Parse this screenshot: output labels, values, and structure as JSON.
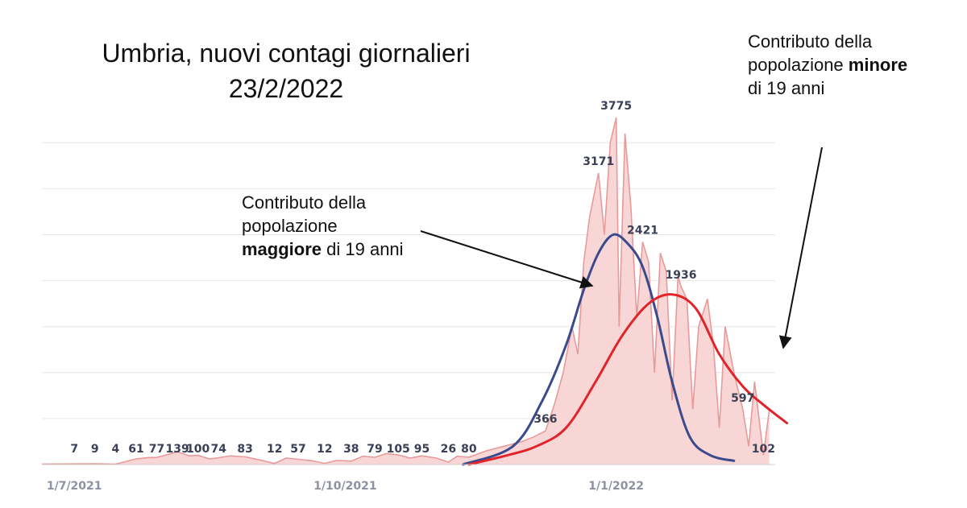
{
  "title_lines": [
    "Umbria, nuovi contagi giornalieri",
    "23/2/2022"
  ],
  "annotations": {
    "adult": {
      "line1": "Contributo della",
      "line2": "popolazione",
      "bold": "maggiore",
      "rest": " di 19 anni"
    },
    "minor": {
      "line1": "Contributo della",
      "line2_plain": "popolazione ",
      "bold": "minore",
      "line3": "di 19 anni"
    }
  },
  "colors": {
    "area_fill": "#f9d6d6",
    "area_line": "#e79a9a",
    "adult_curve": "#3a4a8c",
    "minor_curve": "#e0242a",
    "gridline": "#e6e6e6",
    "arrow": "#111111"
  },
  "chart_data": {
    "type": "area",
    "x_tick_labels": [
      "1/7/2021",
      "1/10/2021",
      "1/1/2022"
    ],
    "grid": true,
    "daily_new_cases_labels": [
      {
        "date": "2021-07-01",
        "value": 7
      },
      {
        "date": "2021-07-08",
        "value": 9
      },
      {
        "date": "2021-07-15",
        "value": 4
      },
      {
        "date": "2021-07-22",
        "value": 61
      },
      {
        "date": "2021-07-29",
        "value": 77
      },
      {
        "date": "2021-08-05",
        "value": 139
      },
      {
        "date": "2021-08-12",
        "value": 100
      },
      {
        "date": "2021-08-19",
        "value": 74
      },
      {
        "date": "2021-08-28",
        "value": 83
      },
      {
        "date": "2021-09-07",
        "value": 12
      },
      {
        "date": "2021-09-15",
        "value": 57
      },
      {
        "date": "2021-09-24",
        "value": 12
      },
      {
        "date": "2021-10-03",
        "value": 38
      },
      {
        "date": "2021-10-11",
        "value": 79
      },
      {
        "date": "2021-10-19",
        "value": 105
      },
      {
        "date": "2021-10-27",
        "value": 95
      },
      {
        "date": "2021-11-05",
        "value": 26
      },
      {
        "date": "2021-11-12",
        "value": 80
      },
      {
        "date": "2021-12-08",
        "value": 366
      },
      {
        "date": "2021-12-26",
        "value": 3171
      },
      {
        "date": "2022-01-01",
        "value": 3775
      },
      {
        "date": "2022-01-10",
        "value": 2421
      },
      {
        "date": "2022-01-23",
        "value": 1936
      },
      {
        "date": "2022-02-13",
        "value": 597
      },
      {
        "date": "2022-02-20",
        "value": 102
      }
    ],
    "series": [
      {
        "values": [
          [
            "2021-11-10",
            0
          ],
          [
            "2021-11-27",
            200
          ],
          [
            "2021-12-07",
            700
          ],
          [
            "2021-12-15",
            1300
          ],
          [
            "2021-12-21",
            1900
          ],
          [
            "2021-12-26",
            2300
          ],
          [
            "2021-12-31",
            2500
          ],
          [
            "2022-01-05",
            2400
          ],
          [
            "2022-01-10",
            2150
          ],
          [
            "2022-01-15",
            1600
          ],
          [
            "2022-01-20",
            900
          ],
          [
            "2022-01-26",
            300
          ],
          [
            "2022-02-02",
            100
          ],
          [
            "2022-02-10",
            40
          ]
        ]
      },
      {
        "values": [
          [
            "2021-11-12",
            0
          ],
          [
            "2021-11-25",
            100
          ],
          [
            "2021-12-05",
            200
          ],
          [
            "2021-12-15",
            400
          ],
          [
            "2021-12-25",
            900
          ],
          [
            "2022-01-03",
            1400
          ],
          [
            "2022-01-12",
            1750
          ],
          [
            "2022-01-20",
            1850
          ],
          [
            "2022-01-28",
            1700
          ],
          [
            "2022-02-05",
            1200
          ],
          [
            "2022-02-13",
            850
          ],
          [
            "2022-02-20",
            650
          ],
          [
            "2022-02-28",
            450
          ]
        ]
      }
    ],
    "daily_series": [
      [
        "2021-06-20",
        5
      ],
      [
        "2021-07-01",
        7
      ],
      [
        "2021-07-08",
        9
      ],
      [
        "2021-07-15",
        4
      ],
      [
        "2021-07-22",
        61
      ],
      [
        "2021-07-26",
        75
      ],
      [
        "2021-07-29",
        77
      ],
      [
        "2021-08-02",
        110
      ],
      [
        "2021-08-05",
        139
      ],
      [
        "2021-08-09",
        95
      ],
      [
        "2021-08-12",
        100
      ],
      [
        "2021-08-16",
        60
      ],
      [
        "2021-08-19",
        74
      ],
      [
        "2021-08-23",
        95
      ],
      [
        "2021-08-28",
        83
      ],
      [
        "2021-09-02",
        50
      ],
      [
        "2021-09-07",
        12
      ],
      [
        "2021-09-11",
        70
      ],
      [
        "2021-09-15",
        57
      ],
      [
        "2021-09-20",
        40
      ],
      [
        "2021-09-24",
        12
      ],
      [
        "2021-09-28",
        45
      ],
      [
        "2021-10-03",
        38
      ],
      [
        "2021-10-07",
        90
      ],
      [
        "2021-10-11",
        79
      ],
      [
        "2021-10-15",
        120
      ],
      [
        "2021-10-19",
        105
      ],
      [
        "2021-10-23",
        70
      ],
      [
        "2021-10-27",
        95
      ],
      [
        "2021-11-01",
        70
      ],
      [
        "2021-11-05",
        26
      ],
      [
        "2021-11-08",
        90
      ],
      [
        "2021-11-12",
        80
      ],
      [
        "2021-11-18",
        150
      ],
      [
        "2021-11-24",
        200
      ],
      [
        "2021-11-30",
        250
      ],
      [
        "2021-12-04",
        300
      ],
      [
        "2021-12-08",
        366
      ],
      [
        "2021-12-11",
        650
      ],
      [
        "2021-12-14",
        1000
      ],
      [
        "2021-12-17",
        1500
      ],
      [
        "2021-12-19",
        1200
      ],
      [
        "2021-12-21",
        2200
      ],
      [
        "2021-12-23",
        2700
      ],
      [
        "2021-12-26",
        3171
      ],
      [
        "2021-12-28",
        2500
      ],
      [
        "2021-12-30",
        3500
      ],
      [
        "2022-01-01",
        3775
      ],
      [
        "2022-01-02",
        1500
      ],
      [
        "2022-01-04",
        3600
      ],
      [
        "2022-01-06",
        2800
      ],
      [
        "2022-01-08",
        1600
      ],
      [
        "2022-01-10",
        2421
      ],
      [
        "2022-01-12",
        2200
      ],
      [
        "2022-01-14",
        1000
      ],
      [
        "2022-01-16",
        2300
      ],
      [
        "2022-01-18",
        2100
      ],
      [
        "2022-01-20",
        700
      ],
      [
        "2022-01-22",
        2050
      ],
      [
        "2022-01-23",
        1936
      ],
      [
        "2022-01-25",
        1800
      ],
      [
        "2022-01-27",
        600
      ],
      [
        "2022-01-29",
        1500
      ],
      [
        "2022-02-01",
        1800
      ],
      [
        "2022-02-03",
        1300
      ],
      [
        "2022-02-05",
        400
      ],
      [
        "2022-02-07",
        1500
      ],
      [
        "2022-02-10",
        1000
      ],
      [
        "2022-02-13",
        597
      ],
      [
        "2022-02-15",
        200
      ],
      [
        "2022-02-17",
        900
      ],
      [
        "2022-02-20",
        102
      ],
      [
        "2022-02-22",
        600
      ]
    ]
  }
}
